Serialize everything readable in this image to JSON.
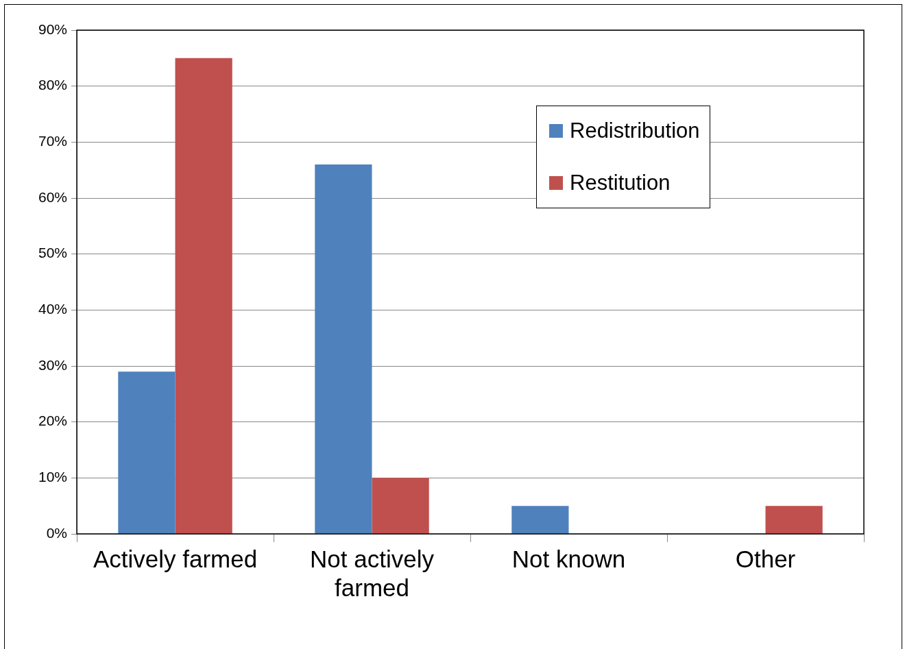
{
  "chart_data": {
    "type": "bar",
    "categories": [
      "Actively farmed",
      "Not actively farmed",
      "Not known",
      "Other"
    ],
    "series": [
      {
        "name": "Redistribution",
        "color": "#4f81bd",
        "values": [
          29,
          66,
          5,
          0
        ]
      },
      {
        "name": "Restitution",
        "color": "#c0504d",
        "values": [
          85,
          10,
          0,
          5
        ]
      }
    ],
    "ylim": [
      0,
      90
    ],
    "yticks": [
      {
        "value": 0,
        "label": "0%"
      },
      {
        "value": 10,
        "label": "10%"
      },
      {
        "value": 20,
        "label": "20%"
      },
      {
        "value": 30,
        "label": "30%"
      },
      {
        "value": 40,
        "label": "40%"
      },
      {
        "value": 50,
        "label": "50%"
      },
      {
        "value": 60,
        "label": "60%"
      },
      {
        "value": 70,
        "label": "70%"
      },
      {
        "value": 80,
        "label": "80%"
      },
      {
        "value": 90,
        "label": "90%"
      }
    ],
    "grid": "y",
    "legend": "top right"
  }
}
